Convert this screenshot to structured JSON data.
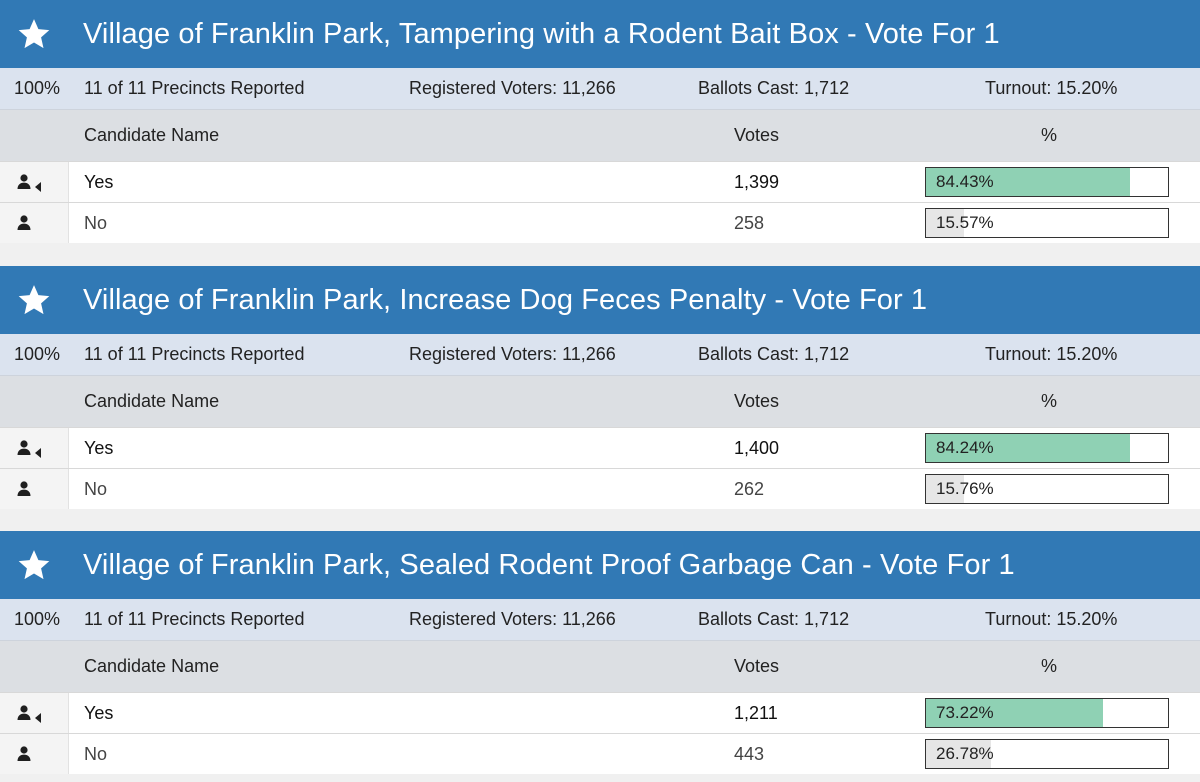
{
  "contests": [
    {
      "title": "Village of Franklin Park, Tampering with a Rodent Bait Box - Vote For 1",
      "summary": {
        "percent_reporting": "100%",
        "precincts": "11 of 11 Precincts Reported",
        "registered": "Registered Voters: 11,266",
        "ballots": "Ballots Cast: 1,712",
        "turnout": "Turnout: 15.20%"
      },
      "columns": {
        "name": "Candidate Name",
        "votes": "Votes",
        "pct": "%"
      },
      "rows": [
        {
          "name": "Yes",
          "votes": "1,399",
          "pct": "84.43%",
          "pct_value": 84.43,
          "winner": true
        },
        {
          "name": "No",
          "votes": "258",
          "pct": "15.57%",
          "pct_value": 15.57,
          "winner": false
        }
      ]
    },
    {
      "title": "Village of Franklin Park, Increase Dog Feces Penalty - Vote For 1",
      "summary": {
        "percent_reporting": "100%",
        "precincts": "11 of 11 Precincts Reported",
        "registered": "Registered Voters: 11,266",
        "ballots": "Ballots Cast: 1,712",
        "turnout": "Turnout: 15.20%"
      },
      "columns": {
        "name": "Candidate Name",
        "votes": "Votes",
        "pct": "%"
      },
      "rows": [
        {
          "name": "Yes",
          "votes": "1,400",
          "pct": "84.24%",
          "pct_value": 84.24,
          "winner": true
        },
        {
          "name": "No",
          "votes": "262",
          "pct": "15.76%",
          "pct_value": 15.76,
          "winner": false
        }
      ]
    },
    {
      "title": "Village of Franklin Park, Sealed Rodent Proof Garbage Can - Vote For 1",
      "summary": {
        "percent_reporting": "100%",
        "precincts": "11 of 11 Precincts Reported",
        "registered": "Registered Voters: 11,266",
        "ballots": "Ballots Cast: 1,712",
        "turnout": "Turnout: 15.20%"
      },
      "columns": {
        "name": "Candidate Name",
        "votes": "Votes",
        "pct": "%"
      },
      "rows": [
        {
          "name": "Yes",
          "votes": "1,211",
          "pct": "73.22%",
          "pct_value": 73.22,
          "winner": true
        },
        {
          "name": "No",
          "votes": "443",
          "pct": "26.78%",
          "pct_value": 26.78,
          "winner": false
        }
      ]
    }
  ],
  "colors": {
    "header": "#3179b5",
    "winner_bar": "#8fd1b4",
    "loser_bar": "#e6e6e6"
  },
  "icons": {
    "favorite": "star-icon",
    "candidate": "user-icon",
    "winner_marker": "caret-left-icon"
  }
}
